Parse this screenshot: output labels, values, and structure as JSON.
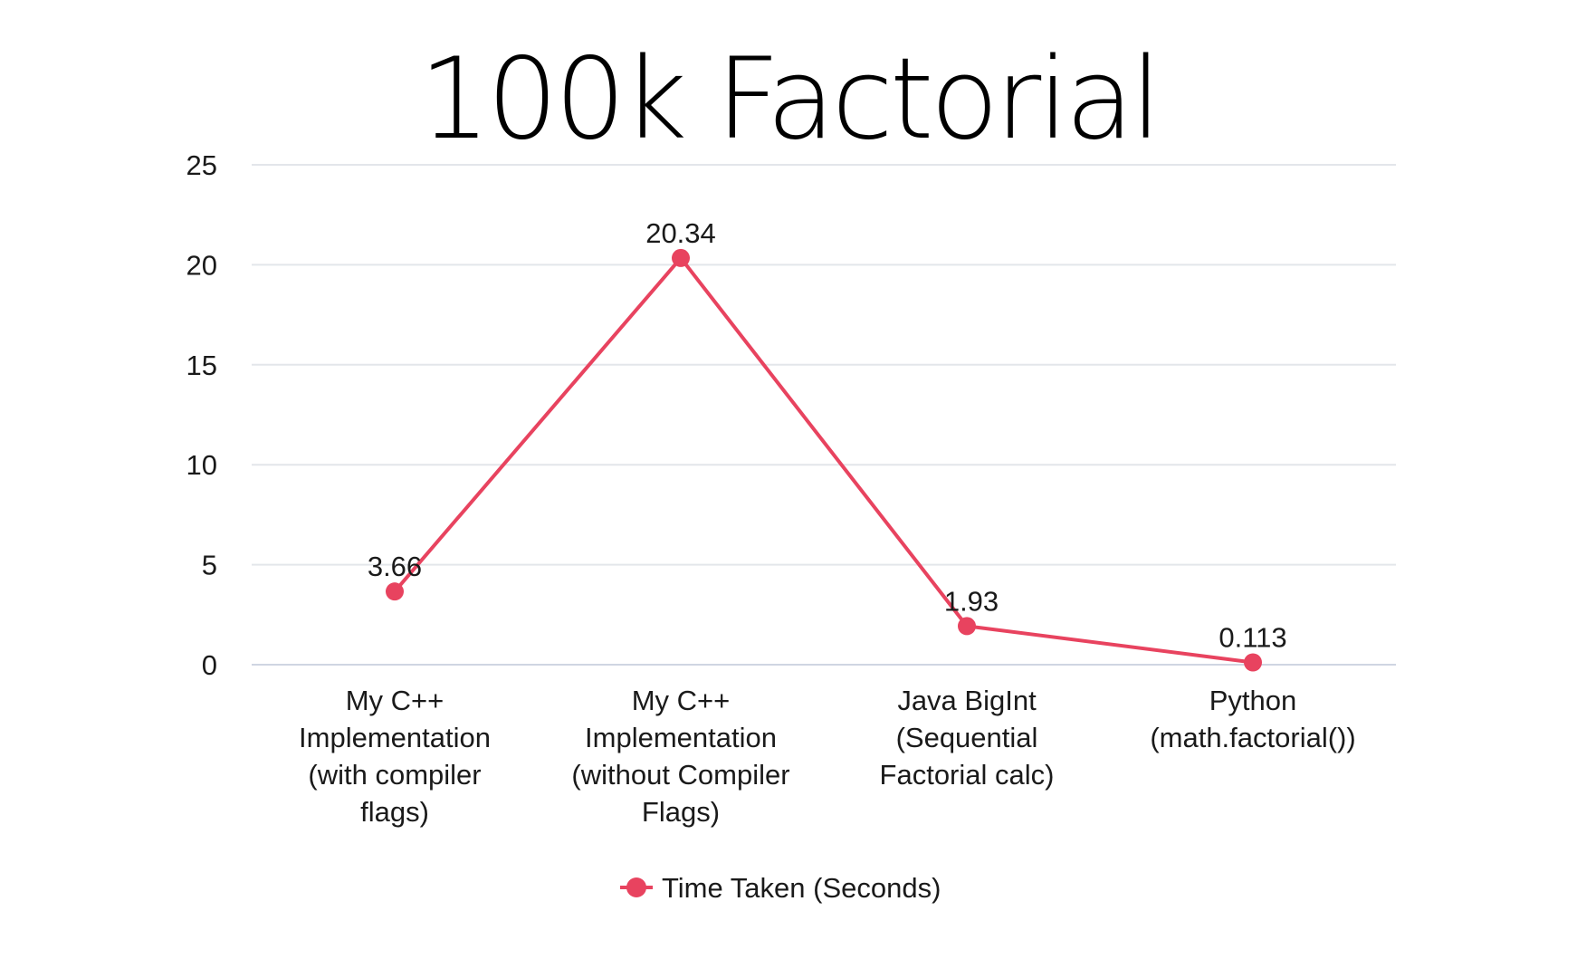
{
  "chart_data": {
    "type": "line",
    "title": "100k Factorial",
    "categories": [
      [
        "My C++",
        "Implementation",
        "(with compiler",
        "flags)"
      ],
      [
        "My C++",
        "Implementation",
        "(without Compiler",
        "Flags)"
      ],
      [
        "Java BigInt",
        "(Sequential",
        "Factorial calc)"
      ],
      [
        "Python",
        "(math.factorial())"
      ]
    ],
    "series": [
      {
        "name": "Time Taken (Seconds)",
        "values": [
          3.66,
          20.34,
          1.93,
          0.113
        ],
        "labels": [
          "3.66",
          "20.34",
          "1.93",
          "0.113"
        ],
        "color": "#e8435f"
      }
    ],
    "ylim": [
      0,
      25
    ],
    "yticks": [
      0,
      5,
      10,
      15,
      20,
      25
    ],
    "xlabel": "",
    "ylabel": "",
    "grid": true,
    "legend_position": "bottom",
    "colors": {
      "gridline": "#e3e6ea",
      "baseline": "#cfd5e2",
      "text": "#1a1a1a"
    }
  }
}
